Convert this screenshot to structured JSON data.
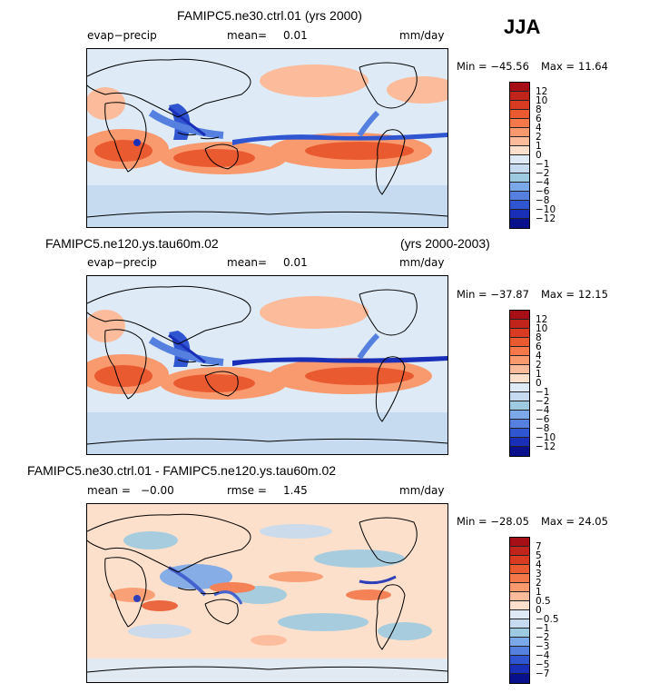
{
  "season": "JJA",
  "panels": [
    {
      "title": "FAMIPC5.ne30.ctrl.01 (yrs 2000)",
      "title_extra": "",
      "stat_left": "evap−precip",
      "stat_center_label": "mean=",
      "stat_center_value": "0.01",
      "stat_right_label": "",
      "stat_right_value": "",
      "units": "mm/day",
      "min_label": "Min = −45.56",
      "max_label": "Max =",
      "max_value": "11.64",
      "levels": [
        "12",
        "10",
        "8",
        "6",
        "4",
        "2",
        "1",
        "0",
        "−1",
        "−2",
        "−4",
        "−6",
        "−8",
        "−10",
        "−12"
      ],
      "colors": [
        "#a50f15",
        "#c0241b",
        "#d93b22",
        "#ea5a30",
        "#f4784a",
        "#f99a6e",
        "#fcbb9a",
        "#fde0cc",
        "#deebf7",
        "#c6dbef",
        "#9ecae1",
        "#7aa8e8",
        "#5580e0",
        "#2f55d0",
        "#1a2fb8",
        "#08108c"
      ]
    },
    {
      "title": "FAMIPC5.ne120.ys.tau60m.02",
      "title_extra": "(yrs 2000-2003)",
      "stat_left": "evap−precip",
      "stat_center_label": "mean=",
      "stat_center_value": "0.01",
      "stat_right_label": "",
      "stat_right_value": "",
      "units": "mm/day",
      "min_label": "Min = −37.87",
      "max_label": "Max =",
      "max_value": "12.15",
      "levels": [
        "12",
        "10",
        "8",
        "6",
        "4",
        "2",
        "1",
        "0",
        "−1",
        "−2",
        "−4",
        "−6",
        "−8",
        "−10",
        "−12"
      ],
      "colors": [
        "#a50f15",
        "#c0241b",
        "#d93b22",
        "#ea5a30",
        "#f4784a",
        "#f99a6e",
        "#fcbb9a",
        "#fde0cc",
        "#deebf7",
        "#c6dbef",
        "#9ecae1",
        "#7aa8e8",
        "#5580e0",
        "#2f55d0",
        "#1a2fb8",
        "#08108c"
      ]
    },
    {
      "title": "FAMIPC5.ne30.ctrl.01 - FAMIPC5.ne120.ys.tau60m.02",
      "title_extra": "",
      "stat_left": "mean =",
      "stat_left_value": "−0.00",
      "stat_center_label": "rmse =",
      "stat_center_value": "1.45",
      "units": "mm/day",
      "min_label": "Min = −28.05",
      "max_label": "Max =",
      "max_value": "24.05",
      "levels": [
        "7",
        "5",
        "4",
        "3",
        "2",
        "1",
        "0.5",
        "0",
        "−0.5",
        "−1",
        "−2",
        "−3",
        "−4",
        "−5",
        "−7"
      ],
      "colors": [
        "#a50f15",
        "#c0241b",
        "#d93b22",
        "#ea5a30",
        "#f4784a",
        "#f99a6e",
        "#fcbb9a",
        "#fde0cc",
        "#deebf7",
        "#c6dbef",
        "#9ecae1",
        "#7aa8e8",
        "#5580e0",
        "#2f55d0",
        "#1a2fb8",
        "#08108c"
      ]
    }
  ]
}
